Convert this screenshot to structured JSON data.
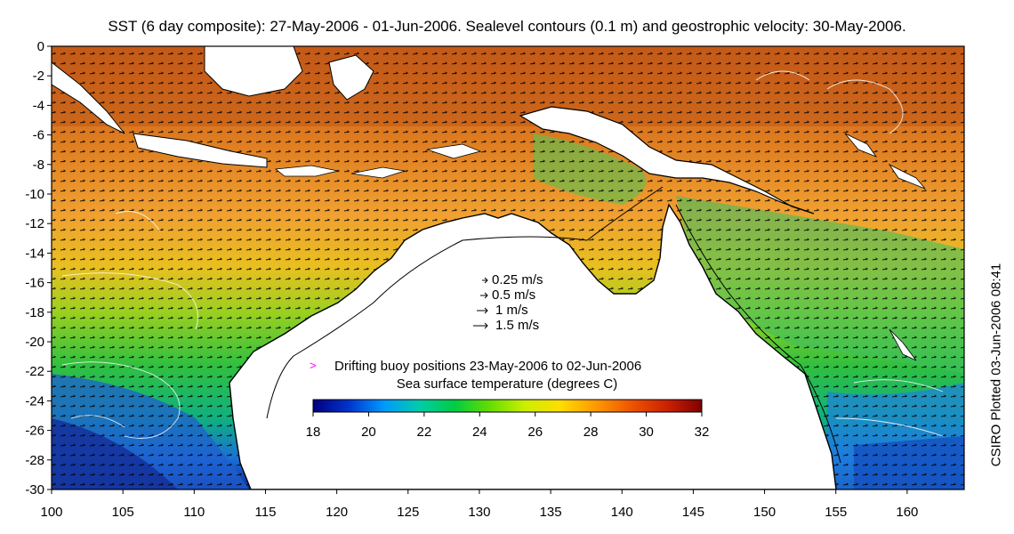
{
  "title": "SST (6 day composite): 27-May-2006 - 01-Jun-2006. Sealevel contours (0.1 m) and geostrophic velocity: 30-May-2006.",
  "side_label": "CSIRO Plotted 03-Jun-2006 08:41",
  "axes": {
    "x": {
      "ticks": [
        "100",
        "105",
        "110",
        "115",
        "120",
        "125",
        "130",
        "135",
        "140",
        "145",
        "150",
        "155",
        "160"
      ],
      "min": 100,
      "max": 164
    },
    "y": {
      "ticks": [
        "0",
        "-2",
        "-4",
        "-6",
        "-8",
        "-10",
        "-12",
        "-14",
        "-16",
        "-18",
        "-20",
        "-22",
        "-24",
        "-26",
        "-28",
        "-30"
      ],
      "min": -30,
      "max": 0
    }
  },
  "velocity_legend": [
    {
      "label": "0.25 m/s",
      "speed": 0.25
    },
    {
      "label": "0.5 m/s",
      "speed": 0.5
    },
    {
      "label": "1 m/s",
      "speed": 1
    },
    {
      "label": "1.5 m/s",
      "speed": 1.5
    }
  ],
  "buoy_legend": {
    "label": "Drifting buoy positions 23-May-2006 to 02-Jun-2006",
    "color": "#ff00ff"
  },
  "colorbar": {
    "title": "Sea surface temperature (degrees C)",
    "ticks": [
      "18",
      "20",
      "22",
      "24",
      "26",
      "28",
      "30",
      "32"
    ],
    "colors": [
      "#00007f",
      "#0033cc",
      "#0099ff",
      "#00ccaa",
      "#00cc44",
      "#66dd00",
      "#ccee00",
      "#ffdd00",
      "#ff9900",
      "#ee5500",
      "#cc2200",
      "#800000"
    ]
  }
}
